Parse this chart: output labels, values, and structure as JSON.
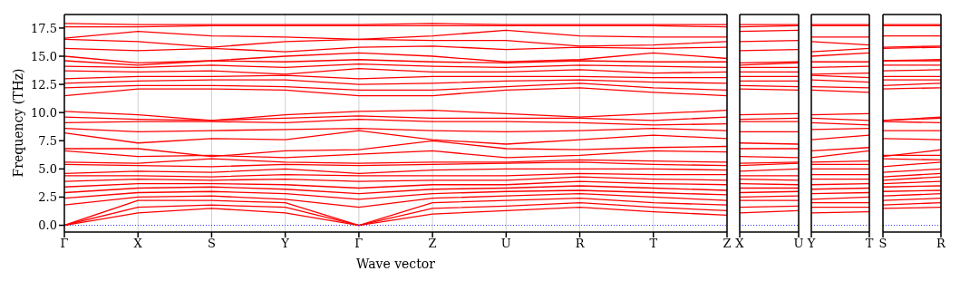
{
  "chart_data": [
    {
      "type": "line",
      "ylabel": "Frequency (THz)",
      "xlabel": "Wave vector",
      "grid": "x",
      "tick_labels": "xy",
      "categories": [
        "Γ",
        "X",
        "S",
        "Y",
        "Γ",
        "Z",
        "U",
        "R",
        "T",
        "Z"
      ],
      "ylim": [
        -0.6,
        18.7
      ],
      "yticks": [
        {
          "value": 0,
          "label": "0.0"
        },
        {
          "value": 2.5,
          "label": "2.5"
        },
        {
          "value": 5,
          "label": "5.0"
        },
        {
          "value": 7.5,
          "label": "7.5"
        },
        {
          "value": 10,
          "label": "10.0"
        },
        {
          "value": 12.5,
          "label": "12.5"
        },
        {
          "value": 15,
          "label": "15.0"
        },
        {
          "value": 17.5,
          "label": "17.5"
        }
      ],
      "ref_lines": [
        {
          "axis": "y",
          "value": 0,
          "color": "#0000ff",
          "line_style": "dotted"
        }
      ],
      "series": [
        {
          "color": "#ff0000",
          "values": [
            0,
            1.1,
            1.5,
            1.1,
            0,
            1.0,
            1.3,
            1.6,
            1.2,
            0.9
          ]
        },
        {
          "color": "#ff0000",
          "values": [
            0,
            1.6,
            1.8,
            1.6,
            0,
            1.5,
            1.7,
            2.0,
            1.6,
            1.3
          ]
        },
        {
          "color": "#ff0000",
          "values": [
            0,
            2.2,
            2.2,
            2.0,
            0,
            2.0,
            2.2,
            2.4,
            2.0,
            1.8
          ]
        },
        {
          "color": "#ff0000",
          "values": [
            1.8,
            2.5,
            2.6,
            2.3,
            1.6,
            2.4,
            2.6,
            2.8,
            2.5,
            2.2
          ]
        },
        {
          "color": "#ff0000",
          "values": [
            2.4,
            2.9,
            3.0,
            2.8,
            2.3,
            2.8,
            3.0,
            3.1,
            2.9,
            2.7
          ]
        },
        {
          "color": "#ff0000",
          "values": [
            2.9,
            3.3,
            3.4,
            3.2,
            2.8,
            3.2,
            3.3,
            3.5,
            3.3,
            3.1
          ]
        },
        {
          "color": "#ff0000",
          "values": [
            3.4,
            3.7,
            3.7,
            3.6,
            3.3,
            3.6,
            3.6,
            3.9,
            3.7,
            3.6
          ]
        },
        {
          "color": "#ff0000",
          "values": [
            3.9,
            4.1,
            4.0,
            4.1,
            3.9,
            4.0,
            4.0,
            4.3,
            4.1,
            4.0
          ]
        },
        {
          "color": "#ff0000",
          "values": [
            4.4,
            4.4,
            4.3,
            4.5,
            4.4,
            4.4,
            4.4,
            4.6,
            4.5,
            4.5
          ]
        },
        {
          "color": "#ff0000",
          "values": [
            4.6,
            4.8,
            4.7,
            5.0,
            4.6,
            4.9,
            5.0,
            5.0,
            5.0,
            4.9
          ]
        },
        {
          "color": "#ff0000",
          "values": [
            5.4,
            5.3,
            5.2,
            5.4,
            5.3,
            5.4,
            5.5,
            5.6,
            5.4,
            5.3
          ]
        },
        {
          "color": "#ff0000",
          "values": [
            5.6,
            5.5,
            5.9,
            5.6,
            5.5,
            5.6,
            5.6,
            5.8,
            5.7,
            5.6
          ]
        },
        {
          "color": "#ff0000",
          "values": [
            6.6,
            6.1,
            6.2,
            6.0,
            6.3,
            6.6,
            6.0,
            6.2,
            6.6,
            6.5
          ]
        },
        {
          "color": "#ff0000",
          "values": [
            6.8,
            6.8,
            6.1,
            6.6,
            6.7,
            7.5,
            6.8,
            6.7,
            6.9,
            7.0
          ]
        },
        {
          "color": "#ff0000",
          "values": [
            8.2,
            7.3,
            7.7,
            7.6,
            8.4,
            7.6,
            7.2,
            7.6,
            8.0,
            7.7
          ]
        },
        {
          "color": "#ff0000",
          "values": [
            8.6,
            8.3,
            8.4,
            8.5,
            8.6,
            8.4,
            8.3,
            8.4,
            8.6,
            8.4
          ]
        },
        {
          "color": "#ff0000",
          "values": [
            9.1,
            9.2,
            9.2,
            9.1,
            9.4,
            9.2,
            9.2,
            9.1,
            8.9,
            9.0
          ]
        },
        {
          "color": "#ff0000",
          "values": [
            9.6,
            9.4,
            9.3,
            9.5,
            9.7,
            9.5,
            9.5,
            9.5,
            9.3,
            9.6
          ]
        },
        {
          "color": "#ff0000",
          "values": [
            10.1,
            9.8,
            9.3,
            9.8,
            10.1,
            10.2,
            9.9,
            9.6,
            9.9,
            10.2
          ]
        },
        {
          "color": "#ff0000",
          "values": [
            11.5,
            12.1,
            12.1,
            12.0,
            11.5,
            11.5,
            12.0,
            12.2,
            11.8,
            11.5
          ]
        },
        {
          "color": "#ff0000",
          "values": [
            12.2,
            12.4,
            12.4,
            12.3,
            12.0,
            12.0,
            12.3,
            12.6,
            12.2,
            12.0
          ]
        },
        {
          "color": "#ff0000",
          "values": [
            12.6,
            12.8,
            12.9,
            12.9,
            12.5,
            12.6,
            12.8,
            12.9,
            12.7,
            12.6
          ]
        },
        {
          "color": "#ff0000",
          "values": [
            13.0,
            13.2,
            13.2,
            13.3,
            13.0,
            13.2,
            13.2,
            13.2,
            13.1,
            13.1
          ]
        },
        {
          "color": "#ff0000",
          "values": [
            13.7,
            13.6,
            13.7,
            13.4,
            13.9,
            13.6,
            13.6,
            13.8,
            13.5,
            13.6
          ]
        },
        {
          "color": "#ff0000",
          "values": [
            14.1,
            14.0,
            14.2,
            14.0,
            14.3,
            14.1,
            14.0,
            14.2,
            14.1,
            14.0
          ]
        },
        {
          "color": "#ff0000",
          "values": [
            14.6,
            14.2,
            14.6,
            14.5,
            14.7,
            14.5,
            14.4,
            14.6,
            14.5,
            14.5
          ]
        },
        {
          "color": "#ff0000",
          "values": [
            15.0,
            14.4,
            14.6,
            15.0,
            15.3,
            15.0,
            14.5,
            14.7,
            15.3,
            14.8
          ]
        },
        {
          "color": "#ff0000",
          "values": [
            15.7,
            15.5,
            15.7,
            15.4,
            15.8,
            15.9,
            15.6,
            15.8,
            15.7,
            15.8
          ]
        },
        {
          "color": "#ff0000",
          "values": [
            16.5,
            16.3,
            15.8,
            16.3,
            16.5,
            16.4,
            16.4,
            15.9,
            16.0,
            16.3
          ]
        },
        {
          "color": "#ff0000",
          "values": [
            16.6,
            17.2,
            16.8,
            16.7,
            16.5,
            16.8,
            17.3,
            16.8,
            16.7,
            16.7
          ]
        },
        {
          "color": "#ff0000",
          "values": [
            17.6,
            17.6,
            17.7,
            17.7,
            17.7,
            17.7,
            17.7,
            17.7,
            17.7,
            17.6
          ]
        },
        {
          "color": "#ff0000",
          "values": [
            17.9,
            17.8,
            17.8,
            17.8,
            17.8,
            17.9,
            17.8,
            17.8,
            17.8,
            17.8
          ]
        }
      ]
    },
    {
      "type": "line",
      "grid": "x",
      "tick_labels": "x",
      "categories": [
        "X",
        "U"
      ],
      "ylim": [
        -0.6,
        18.7
      ],
      "ref_lines": [
        {
          "axis": "y",
          "value": 0,
          "color": "#0000ff",
          "line_style": "dotted"
        }
      ],
      "series": [
        {
          "color": "#ff0000",
          "values": [
            1.1,
            1.3
          ]
        },
        {
          "color": "#ff0000",
          "values": [
            1.6,
            1.7
          ]
        },
        {
          "color": "#ff0000",
          "values": [
            2.2,
            2.2
          ]
        },
        {
          "color": "#ff0000",
          "values": [
            2.5,
            2.6
          ]
        },
        {
          "color": "#ff0000",
          "values": [
            2.9,
            3.0
          ]
        },
        {
          "color": "#ff0000",
          "values": [
            3.3,
            3.3
          ]
        },
        {
          "color": "#ff0000",
          "values": [
            3.7,
            3.6
          ]
        },
        {
          "color": "#ff0000",
          "values": [
            4.1,
            4.0
          ]
        },
        {
          "color": "#ff0000",
          "values": [
            4.4,
            4.4
          ]
        },
        {
          "color": "#ff0000",
          "values": [
            4.8,
            5.0
          ]
        },
        {
          "color": "#ff0000",
          "values": [
            5.3,
            5.5
          ]
        },
        {
          "color": "#ff0000",
          "values": [
            5.5,
            5.6
          ]
        },
        {
          "color": "#ff0000",
          "values": [
            6.1,
            6.0
          ]
        },
        {
          "color": "#ff0000",
          "values": [
            6.8,
            6.8
          ]
        },
        {
          "color": "#ff0000",
          "values": [
            7.3,
            7.2
          ]
        },
        {
          "color": "#ff0000",
          "values": [
            8.3,
            8.3
          ]
        },
        {
          "color": "#ff0000",
          "values": [
            9.2,
            9.2
          ]
        },
        {
          "color": "#ff0000",
          "values": [
            9.4,
            9.5
          ]
        },
        {
          "color": "#ff0000",
          "values": [
            9.8,
            9.9
          ]
        },
        {
          "color": "#ff0000",
          "values": [
            12.1,
            12.0
          ]
        },
        {
          "color": "#ff0000",
          "values": [
            12.4,
            12.3
          ]
        },
        {
          "color": "#ff0000",
          "values": [
            12.8,
            12.8
          ]
        },
        {
          "color": "#ff0000",
          "values": [
            13.2,
            13.2
          ]
        },
        {
          "color": "#ff0000",
          "values": [
            13.6,
            13.6
          ]
        },
        {
          "color": "#ff0000",
          "values": [
            14.0,
            14.0
          ]
        },
        {
          "color": "#ff0000",
          "values": [
            14.2,
            14.4
          ]
        },
        {
          "color": "#ff0000",
          "values": [
            14.4,
            14.5
          ]
        },
        {
          "color": "#ff0000",
          "values": [
            15.5,
            15.6
          ]
        },
        {
          "color": "#ff0000",
          "values": [
            16.3,
            16.4
          ]
        },
        {
          "color": "#ff0000",
          "values": [
            17.2,
            17.3
          ]
        },
        {
          "color": "#ff0000",
          "values": [
            17.6,
            17.7
          ]
        },
        {
          "color": "#ff0000",
          "values": [
            17.8,
            17.8
          ]
        }
      ]
    },
    {
      "type": "line",
      "grid": "x",
      "tick_labels": "x",
      "categories": [
        "Y",
        "T"
      ],
      "ylim": [
        -0.6,
        18.7
      ],
      "ref_lines": [
        {
          "axis": "y",
          "value": 0,
          "color": "#0000ff",
          "line_style": "dotted"
        }
      ],
      "series": [
        {
          "color": "#ff0000",
          "values": [
            1.1,
            1.2
          ]
        },
        {
          "color": "#ff0000",
          "values": [
            1.6,
            1.6
          ]
        },
        {
          "color": "#ff0000",
          "values": [
            2.0,
            2.0
          ]
        },
        {
          "color": "#ff0000",
          "values": [
            2.3,
            2.5
          ]
        },
        {
          "color": "#ff0000",
          "values": [
            2.8,
            2.9
          ]
        },
        {
          "color": "#ff0000",
          "values": [
            3.2,
            3.3
          ]
        },
        {
          "color": "#ff0000",
          "values": [
            3.6,
            3.7
          ]
        },
        {
          "color": "#ff0000",
          "values": [
            4.1,
            4.1
          ]
        },
        {
          "color": "#ff0000",
          "values": [
            4.5,
            4.5
          ]
        },
        {
          "color": "#ff0000",
          "values": [
            5.0,
            5.0
          ]
        },
        {
          "color": "#ff0000",
          "values": [
            5.4,
            5.4
          ]
        },
        {
          "color": "#ff0000",
          "values": [
            5.6,
            5.7
          ]
        },
        {
          "color": "#ff0000",
          "values": [
            6.0,
            6.6
          ]
        },
        {
          "color": "#ff0000",
          "values": [
            6.6,
            6.9
          ]
        },
        {
          "color": "#ff0000",
          "values": [
            7.6,
            8.0
          ]
        },
        {
          "color": "#ff0000",
          "values": [
            8.5,
            8.6
          ]
        },
        {
          "color": "#ff0000",
          "values": [
            9.1,
            8.9
          ]
        },
        {
          "color": "#ff0000",
          "values": [
            9.5,
            9.3
          ]
        },
        {
          "color": "#ff0000",
          "values": [
            9.8,
            9.9
          ]
        },
        {
          "color": "#ff0000",
          "values": [
            12.0,
            11.8
          ]
        },
        {
          "color": "#ff0000",
          "values": [
            12.3,
            12.2
          ]
        },
        {
          "color": "#ff0000",
          "values": [
            12.9,
            12.7
          ]
        },
        {
          "color": "#ff0000",
          "values": [
            13.3,
            13.1
          ]
        },
        {
          "color": "#ff0000",
          "values": [
            13.4,
            13.5
          ]
        },
        {
          "color": "#ff0000",
          "values": [
            14.0,
            14.1
          ]
        },
        {
          "color": "#ff0000",
          "values": [
            14.5,
            14.5
          ]
        },
        {
          "color": "#ff0000",
          "values": [
            15.0,
            15.3
          ]
        },
        {
          "color": "#ff0000",
          "values": [
            15.4,
            15.7
          ]
        },
        {
          "color": "#ff0000",
          "values": [
            16.3,
            16.0
          ]
        },
        {
          "color": "#ff0000",
          "values": [
            16.7,
            16.7
          ]
        },
        {
          "color": "#ff0000",
          "values": [
            17.7,
            17.7
          ]
        },
        {
          "color": "#ff0000",
          "values": [
            17.8,
            17.8
          ]
        }
      ]
    },
    {
      "type": "line",
      "grid": "x",
      "tick_labels": "x",
      "categories": [
        "S",
        "R"
      ],
      "ylim": [
        -0.6,
        18.7
      ],
      "ref_lines": [
        {
          "axis": "y",
          "value": 0,
          "color": "#0000ff",
          "line_style": "dotted"
        }
      ],
      "series": [
        {
          "color": "#ff0000",
          "values": [
            1.5,
            1.6
          ]
        },
        {
          "color": "#ff0000",
          "values": [
            1.8,
            2.0
          ]
        },
        {
          "color": "#ff0000",
          "values": [
            2.2,
            2.4
          ]
        },
        {
          "color": "#ff0000",
          "values": [
            2.6,
            2.8
          ]
        },
        {
          "color": "#ff0000",
          "values": [
            3.0,
            3.1
          ]
        },
        {
          "color": "#ff0000",
          "values": [
            3.4,
            3.5
          ]
        },
        {
          "color": "#ff0000",
          "values": [
            3.7,
            3.9
          ]
        },
        {
          "color": "#ff0000",
          "values": [
            4.0,
            4.3
          ]
        },
        {
          "color": "#ff0000",
          "values": [
            4.3,
            4.6
          ]
        },
        {
          "color": "#ff0000",
          "values": [
            4.7,
            5.0
          ]
        },
        {
          "color": "#ff0000",
          "values": [
            5.2,
            5.6
          ]
        },
        {
          "color": "#ff0000",
          "values": [
            5.9,
            5.8
          ]
        },
        {
          "color": "#ff0000",
          "values": [
            6.2,
            6.2
          ]
        },
        {
          "color": "#ff0000",
          "values": [
            6.1,
            6.7
          ]
        },
        {
          "color": "#ff0000",
          "values": [
            7.7,
            7.6
          ]
        },
        {
          "color": "#ff0000",
          "values": [
            8.4,
            8.4
          ]
        },
        {
          "color": "#ff0000",
          "values": [
            9.2,
            9.1
          ]
        },
        {
          "color": "#ff0000",
          "values": [
            9.3,
            9.5
          ]
        },
        {
          "color": "#ff0000",
          "values": [
            9.3,
            9.6
          ]
        },
        {
          "color": "#ff0000",
          "values": [
            12.1,
            12.2
          ]
        },
        {
          "color": "#ff0000",
          "values": [
            12.4,
            12.6
          ]
        },
        {
          "color": "#ff0000",
          "values": [
            12.9,
            12.9
          ]
        },
        {
          "color": "#ff0000",
          "values": [
            13.2,
            13.2
          ]
        },
        {
          "color": "#ff0000",
          "values": [
            13.7,
            13.8
          ]
        },
        {
          "color": "#ff0000",
          "values": [
            14.2,
            14.2
          ]
        },
        {
          "color": "#ff0000",
          "values": [
            14.6,
            14.6
          ]
        },
        {
          "color": "#ff0000",
          "values": [
            14.6,
            14.7
          ]
        },
        {
          "color": "#ff0000",
          "values": [
            15.7,
            15.8
          ]
        },
        {
          "color": "#ff0000",
          "values": [
            15.8,
            15.9
          ]
        },
        {
          "color": "#ff0000",
          "values": [
            16.8,
            16.8
          ]
        },
        {
          "color": "#ff0000",
          "values": [
            17.7,
            17.7
          ]
        },
        {
          "color": "#ff0000",
          "values": [
            17.8,
            17.8
          ]
        }
      ]
    }
  ]
}
